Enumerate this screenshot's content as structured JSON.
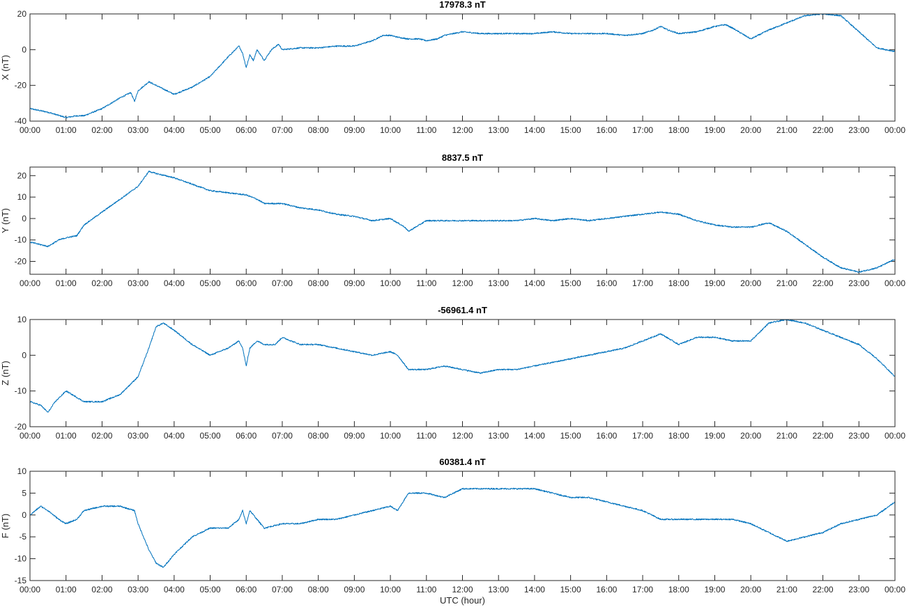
{
  "figure": {
    "xlabel": "UTC (hour)"
  },
  "colors": {
    "line": "#0072bd",
    "axes": "#262626",
    "background": "#ffffff"
  },
  "x_tick_labels": [
    "00:00",
    "01:00",
    "02:00",
    "03:00",
    "04:00",
    "05:00",
    "06:00",
    "07:00",
    "08:00",
    "09:00",
    "10:00",
    "11:00",
    "12:00",
    "13:00",
    "14:00",
    "15:00",
    "16:00",
    "17:00",
    "18:00",
    "19:00",
    "20:00",
    "21:00",
    "22:00",
    "23:00",
    "00:00"
  ],
  "chart_data": [
    {
      "type": "line",
      "title": "17978.3 nT",
      "ylabel": "X (nT)",
      "xlim": [
        0,
        24
      ],
      "ylim": [
        -40,
        20
      ],
      "yticks": [
        -40,
        -20,
        0,
        20
      ],
      "series": [
        {
          "x": [
            0,
            0.5,
            1,
            1.3,
            1.5,
            2,
            2.5,
            2.8,
            2.9,
            3,
            3.3,
            3.5,
            4,
            4.5,
            5,
            5.5,
            5.8,
            5.9,
            6,
            6.1,
            6.2,
            6.3,
            6.4,
            6.5,
            6.7,
            6.9,
            7,
            7.5,
            8,
            8.5,
            9,
            9.5,
            9.8,
            10,
            10.2,
            10.5,
            10.8,
            11,
            11.3,
            11.5,
            12,
            12.5,
            13,
            13.5,
            14,
            14.5,
            15,
            15.5,
            16,
            16.5,
            17,
            17.3,
            17.5,
            17.7,
            18,
            18.5,
            19,
            19.3,
            19.5,
            20,
            20.5,
            21,
            21.5,
            22,
            22.5,
            23,
            23.5,
            24
          ],
          "y": [
            -33,
            -35,
            -38,
            -37,
            -37,
            -33,
            -27,
            -24,
            -29,
            -23,
            -18,
            -20,
            -25,
            -21,
            -15,
            -4,
            2,
            -2,
            -10,
            -3,
            -6,
            0,
            -3,
            -6,
            0,
            3,
            0,
            1,
            1,
            2,
            2,
            5,
            8,
            8,
            7,
            6,
            6,
            5,
            6,
            8,
            10,
            9,
            9,
            9,
            9,
            10,
            9,
            9,
            9,
            8,
            9,
            11,
            13,
            11,
            9,
            10,
            13,
            14,
            12,
            6,
            11,
            15,
            19,
            20,
            19,
            10,
            1,
            -1
          ]
        }
      ]
    },
    {
      "type": "line",
      "title": "8837.5 nT",
      "ylabel": "Y (nT)",
      "xlim": [
        0,
        24
      ],
      "ylim": [
        -26,
        24
      ],
      "yticks": [
        -20,
        -10,
        0,
        10,
        20
      ],
      "series": [
        {
          "x": [
            0,
            0.5,
            0.8,
            1,
            1.3,
            1.5,
            2,
            2.5,
            3,
            3.3,
            3.5,
            4,
            4.5,
            5,
            5.5,
            6,
            6.3,
            6.5,
            7,
            7.5,
            8,
            8.5,
            9,
            9.5,
            10,
            10.2,
            10.4,
            10.5,
            11,
            11.5,
            12,
            12.5,
            13,
            13.5,
            14,
            14.5,
            15,
            15.5,
            16,
            16.5,
            17,
            17.5,
            18,
            18.5,
            19,
            19.5,
            20,
            20.5,
            21,
            21.5,
            22,
            22.5,
            23,
            23.5,
            24
          ],
          "y": [
            -11,
            -13,
            -10,
            -9,
            -8,
            -3,
            3,
            9,
            15,
            22,
            21,
            19,
            16,
            13,
            12,
            11,
            9,
            7,
            7,
            5,
            4,
            2,
            1,
            -1,
            0,
            -2,
            -4,
            -6,
            -1,
            -1,
            -1,
            -1,
            -1,
            -1,
            0,
            -1,
            0,
            -1,
            0,
            1,
            2,
            3,
            2,
            -1,
            -3,
            -4,
            -4,
            -2,
            -6,
            -12,
            -18,
            -23,
            -25,
            -23,
            -19
          ]
        }
      ]
    },
    {
      "type": "line",
      "title": "-56961.4 nT",
      "ylabel": "Z (nT)",
      "xlim": [
        0,
        24
      ],
      "ylim": [
        -20,
        10
      ],
      "yticks": [
        -20,
        -10,
        0,
        10
      ],
      "series": [
        {
          "x": [
            0,
            0.3,
            0.5,
            0.7,
            1,
            1.5,
            2,
            2.5,
            3,
            3.3,
            3.5,
            3.7,
            4,
            4.5,
            5,
            5.5,
            5.8,
            5.9,
            6,
            6.1,
            6.3,
            6.5,
            6.8,
            7,
            7.5,
            8,
            8.5,
            9,
            9.5,
            10,
            10.2,
            10.5,
            11,
            11.5,
            12,
            12.5,
            13,
            13.5,
            14,
            14.5,
            15,
            15.5,
            16,
            16.5,
            17,
            17.5,
            18,
            18.5,
            19,
            19.5,
            20,
            20.5,
            21,
            21.5,
            22,
            22.5,
            23,
            23.5,
            24
          ],
          "y": [
            -13,
            -14,
            -16,
            -13,
            -10,
            -13,
            -13,
            -11,
            -6,
            2,
            8,
            9,
            7,
            3,
            0,
            2,
            4,
            2,
            -3,
            2,
            4,
            3,
            3,
            5,
            3,
            3,
            2,
            1,
            0,
            1,
            0,
            -4,
            -4,
            -3,
            -4,
            -5,
            -4,
            -4,
            -3,
            -2,
            -1,
            0,
            1,
            2,
            4,
            6,
            3,
            5,
            5,
            4,
            4,
            9,
            10,
            9,
            7,
            5,
            3,
            -1,
            -6
          ]
        }
      ]
    },
    {
      "type": "line",
      "title": "60381.4 nT",
      "ylabel": "F (nT)",
      "xlim": [
        0,
        24
      ],
      "ylim": [
        -15,
        10
      ],
      "yticks": [
        -15,
        -10,
        -5,
        0,
        5,
        10
      ],
      "series": [
        {
          "x": [
            0,
            0.3,
            0.5,
            0.8,
            1,
            1.3,
            1.5,
            2,
            2.5,
            2.9,
            3,
            3.3,
            3.5,
            3.7,
            4,
            4.5,
            5,
            5.5,
            5.8,
            5.9,
            6,
            6.1,
            6.3,
            6.5,
            7,
            7.5,
            8,
            8.5,
            9,
            9.5,
            10,
            10.2,
            10.5,
            11,
            11.5,
            12,
            12.5,
            13,
            13.5,
            14,
            14.5,
            15,
            15.5,
            16,
            16.5,
            17,
            17.5,
            18,
            18.5,
            19,
            19.5,
            20,
            20.5,
            21,
            21.5,
            22,
            22.5,
            23,
            23.5,
            24
          ],
          "y": [
            0,
            2,
            1,
            -1,
            -2,
            -1,
            1,
            2,
            2,
            1,
            -2,
            -8,
            -11,
            -12,
            -9,
            -5,
            -3,
            -3,
            -1,
            1,
            -2,
            1,
            -1,
            -3,
            -2,
            -2,
            -1,
            -1,
            0,
            1,
            2,
            1,
            5,
            5,
            4,
            6,
            6,
            6,
            6,
            6,
            5,
            4,
            4,
            3,
            2,
            1,
            -1,
            -1,
            -1,
            -1,
            -1,
            -2,
            -4,
            -6,
            -5,
            -4,
            -2,
            -1,
            0,
            3
          ]
        }
      ]
    }
  ]
}
